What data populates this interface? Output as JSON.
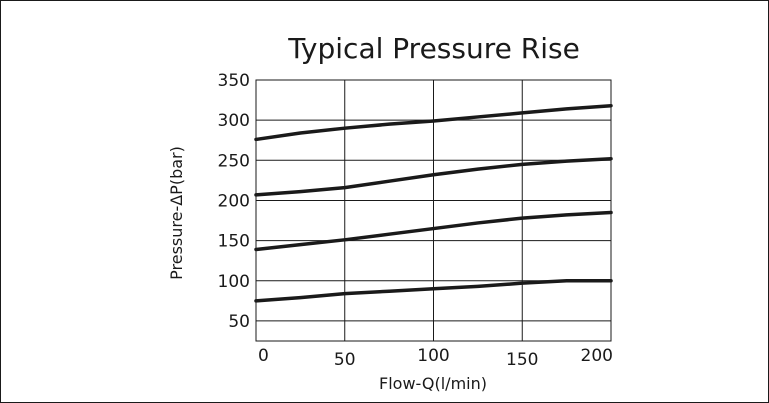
{
  "chart_data": {
    "type": "line",
    "title": "Typical Pressure Rise",
    "xlabel": "Flow-Q(l/min)",
    "ylabel": "Pressure-ΔP(bar)",
    "xlim": [
      0,
      200
    ],
    "ylim": [
      25,
      350
    ],
    "xticks": [
      "0",
      "50",
      "100",
      "150",
      "200"
    ],
    "yticks": [
      "350",
      "300",
      "250",
      "200",
      "150",
      "100",
      "50"
    ],
    "grid": true,
    "series": [
      {
        "x": [
          0,
          25,
          50,
          75,
          100,
          125,
          150,
          175,
          200
        ],
        "values": [
          276,
          284,
          290,
          295,
          299,
          304,
          309,
          314,
          318
        ]
      },
      {
        "x": [
          0,
          25,
          50,
          75,
          100,
          125,
          150,
          175,
          200
        ],
        "values": [
          207,
          211,
          216,
          224,
          232,
          239,
          245,
          249,
          252
        ]
      },
      {
        "x": [
          0,
          25,
          50,
          75,
          100,
          125,
          150,
          175,
          200
        ],
        "values": [
          139,
          145,
          151,
          158,
          165,
          172,
          178,
          182,
          185
        ]
      },
      {
        "x": [
          0,
          25,
          50,
          75,
          100,
          125,
          150,
          175,
          200
        ],
        "values": [
          75,
          79,
          84,
          87,
          90,
          93,
          97,
          100,
          100
        ]
      }
    ]
  }
}
